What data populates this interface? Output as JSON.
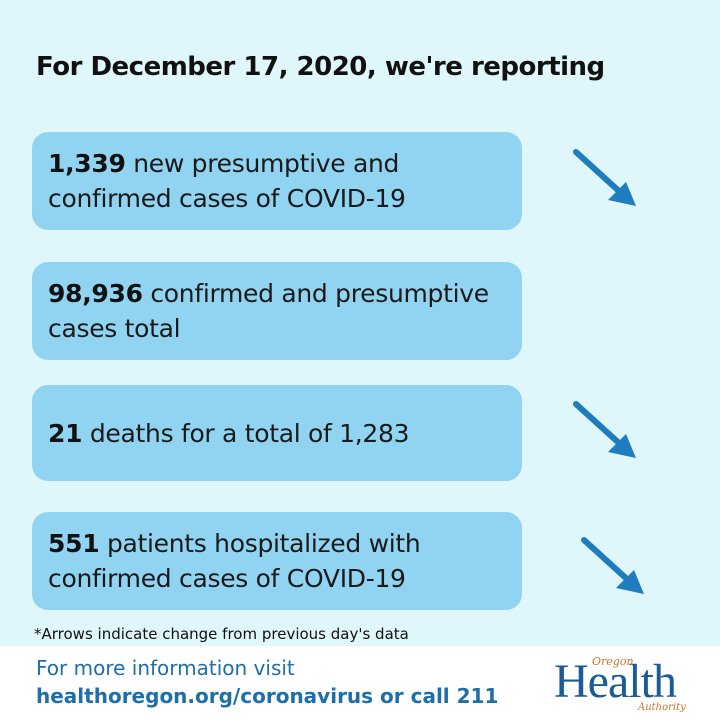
{
  "headline": "For December 17, 2020, we're reporting",
  "cards": [
    {
      "number": "1,339",
      "text": " new presumptive and confirmed cases of COVID-19",
      "trend": "down-arrow-icon"
    },
    {
      "number": "98,936",
      "text": " confirmed and presumptive cases total",
      "trend": "none"
    },
    {
      "number": "21",
      "text": " deaths for a total of 1,283",
      "trend": "down-arrow-icon"
    },
    {
      "number": "551",
      "text": " patients hospitalized with confirmed cases of COVID-19",
      "trend": "down-arrow-icon"
    }
  ],
  "footnote": "*Arrows indicate change from previous day's data",
  "footer": {
    "line1": "For more information visit",
    "line2": "healthoregon.org/coronavirus or call 211"
  },
  "logo": {
    "oregon": "Oregon",
    "health": "Health",
    "authority": "Authority"
  },
  "colors": {
    "background": "#dff7fb",
    "card": "#90d4f2",
    "arrow": "#1f7cbf",
    "footer_text": "#1e6fa8"
  }
}
